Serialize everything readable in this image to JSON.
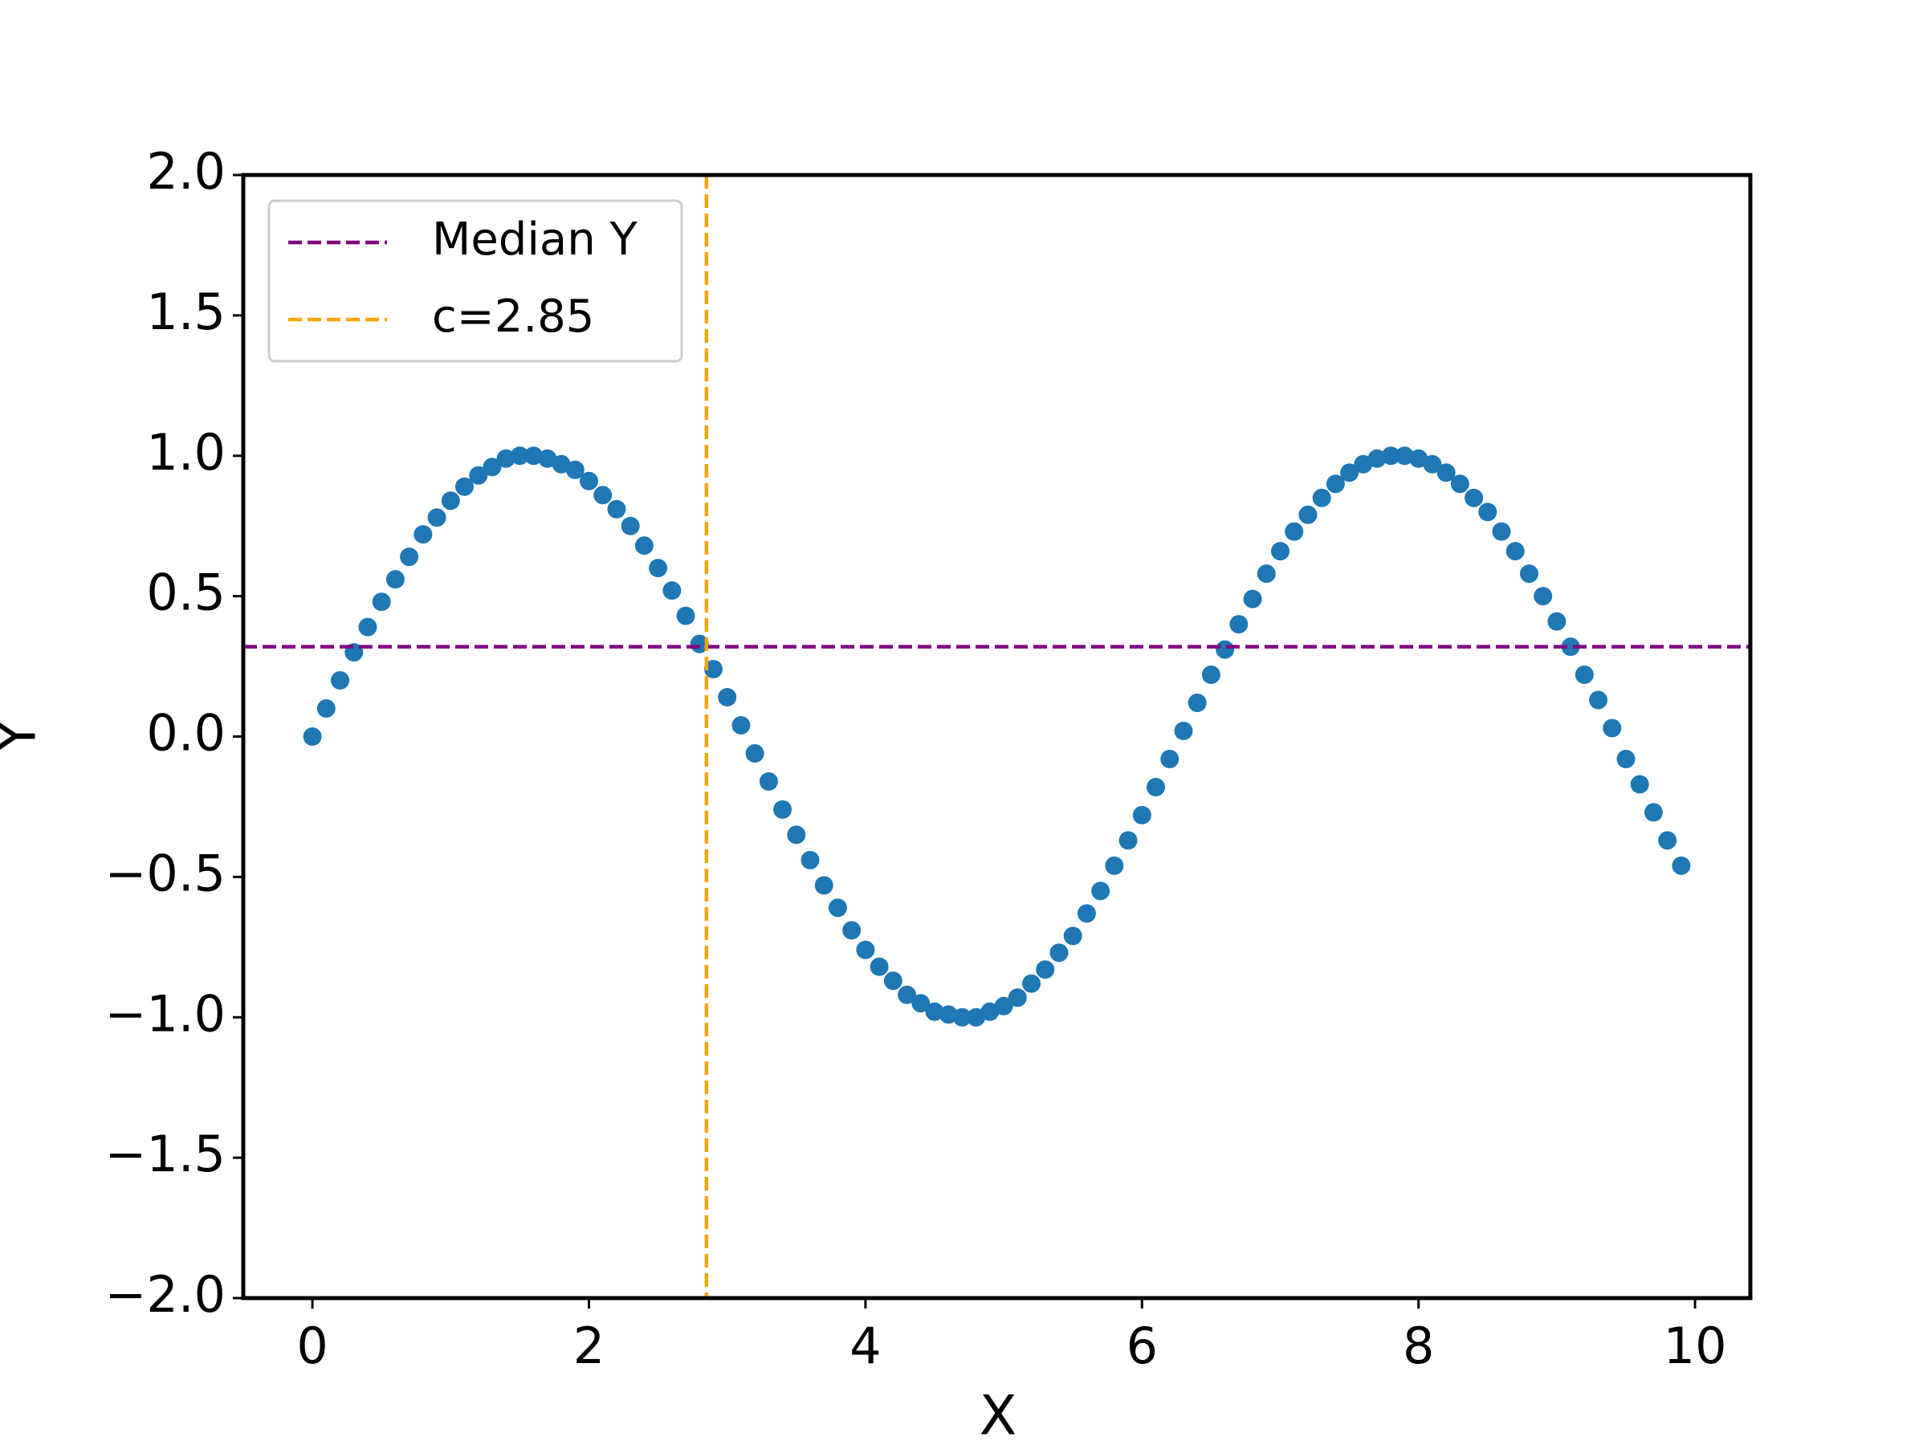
{
  "chart_data": {
    "type": "scatter",
    "x": [
      0,
      0.1,
      0.2,
      0.3,
      0.4,
      0.5,
      0.6,
      0.7,
      0.8,
      0.9,
      1.0,
      1.1,
      1.2,
      1.3,
      1.4,
      1.5,
      1.6,
      1.7,
      1.8,
      1.9,
      2.0,
      2.1,
      2.2,
      2.3,
      2.4,
      2.5,
      2.6,
      2.7,
      2.8,
      2.9,
      3.0,
      3.1,
      3.2,
      3.3,
      3.4,
      3.5,
      3.6,
      3.7,
      3.8,
      3.9,
      4.0,
      4.1,
      4.2,
      4.3,
      4.4,
      4.5,
      4.6,
      4.7,
      4.8,
      4.9,
      5.0,
      5.1,
      5.2,
      5.3,
      5.4,
      5.5,
      5.6,
      5.7,
      5.8,
      5.9,
      6.0,
      6.1,
      6.2,
      6.3,
      6.4,
      6.5,
      6.6,
      6.7,
      6.8,
      6.9,
      7.0,
      7.1,
      7.2,
      7.3,
      7.4,
      7.5,
      7.6,
      7.7,
      7.8,
      7.9,
      8.0,
      8.1,
      8.2,
      8.3,
      8.4,
      8.5,
      8.6,
      8.7,
      8.8,
      8.9,
      9.0,
      9.1,
      9.2,
      9.3,
      9.4,
      9.5,
      9.6,
      9.7,
      9.8,
      9.9
    ],
    "series": [
      {
        "color": "#1f77b4",
        "values": [
          0,
          0.1,
          0.2,
          0.3,
          0.39,
          0.48,
          0.56,
          0.64,
          0.72,
          0.78,
          0.84,
          0.89,
          0.93,
          0.96,
          0.99,
          1.0,
          1.0,
          0.99,
          0.97,
          0.95,
          0.91,
          0.86,
          0.81,
          0.75,
          0.68,
          0.6,
          0.52,
          0.43,
          0.33,
          0.24,
          0.14,
          0.04,
          -0.06,
          -0.16,
          -0.26,
          -0.35,
          -0.44,
          -0.53,
          -0.61,
          -0.69,
          -0.76,
          -0.82,
          -0.87,
          -0.92,
          -0.95,
          -0.98,
          -0.99,
          -1.0,
          -1.0,
          -0.98,
          -0.96,
          -0.93,
          -0.88,
          -0.83,
          -0.77,
          -0.71,
          -0.63,
          -0.55,
          -0.46,
          -0.37,
          -0.28,
          -0.18,
          -0.08,
          0.02,
          0.12,
          0.22,
          0.31,
          0.4,
          0.49,
          0.58,
          0.66,
          0.73,
          0.79,
          0.85,
          0.9,
          0.94,
          0.97,
          0.99,
          1.0,
          1.0,
          0.99,
          0.97,
          0.94,
          0.9,
          0.85,
          0.8,
          0.73,
          0.66,
          0.58,
          0.5,
          0.41,
          0.32,
          0.22,
          0.13,
          0.03,
          -0.08,
          -0.17,
          -0.27,
          -0.37,
          -0.46
        ]
      }
    ],
    "hlines": [
      {
        "name": "Median Y",
        "y": 0.32,
        "color": "purple"
      }
    ],
    "vlines": [
      {
        "name": "c=2.85",
        "x": 2.85,
        "color": "orange"
      }
    ],
    "xlabel": "X",
    "ylabel": "Y",
    "xlim": [
      -0.5,
      10.4
    ],
    "ylim": [
      -2,
      2
    ],
    "xticks": [
      0,
      2,
      4,
      6,
      8,
      10
    ],
    "yticks": [
      {
        "value": -2,
        "label": "−2.0"
      },
      {
        "value": -1.5,
        "label": "−1.5"
      },
      {
        "value": -1,
        "label": "−1.0"
      },
      {
        "value": -0.5,
        "label": "−0.5"
      },
      {
        "value": 0,
        "label": "0.0"
      },
      0.5,
      {
        "value": 1,
        "label": "1.0"
      },
      1.5,
      {
        "value": 2,
        "label": "2.0"
      }
    ],
    "legend": "upper left"
  }
}
